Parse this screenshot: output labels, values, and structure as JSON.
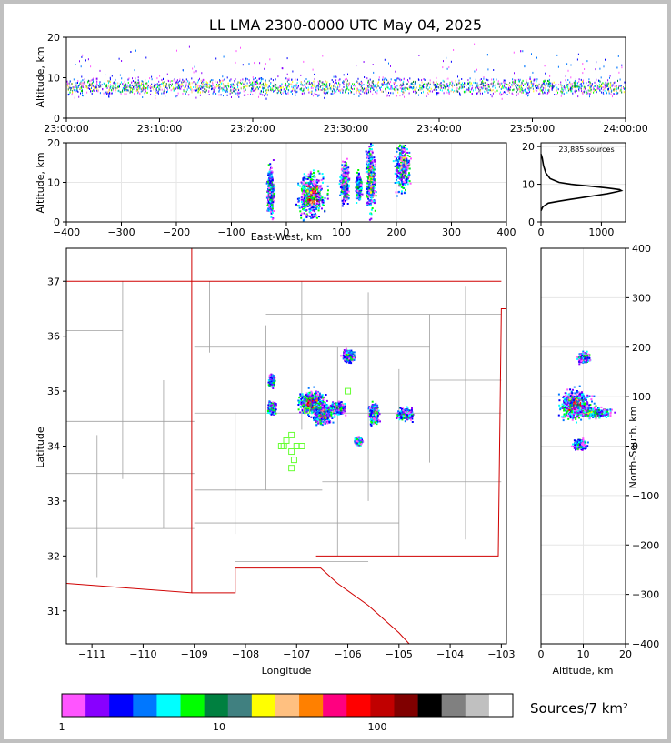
{
  "chart_data": [
    {
      "type": "scatter",
      "panel": "altitude-vs-time",
      "title": "LL LMA 2300-0000 UTC May 04, 2025",
      "ylabel": "Altitude, km",
      "x_ticks": [
        "23:00:00",
        "23:10:00",
        "23:20:00",
        "23:30:00",
        "23:40:00",
        "23:50:00",
        "24:00:00"
      ],
      "xlim": [
        "23:00:00",
        "24:00:00"
      ],
      "y_ticks": [
        "0",
        "10",
        "20"
      ],
      "ylim": [
        0,
        20
      ],
      "band": [
        {
          "altitude_km": 8,
          "spread_km": 4
        }
      ]
    },
    {
      "type": "heatmap",
      "panel": "altitude-vs-east-west",
      "xlabel": "East-West, km",
      "ylabel": "Altitude, km",
      "x_ticks": [
        "−400",
        "−300",
        "−200",
        "−100",
        "0",
        "100",
        "200",
        "300",
        "400"
      ],
      "xlim": [
        -400,
        400
      ],
      "y_ticks": [
        "0",
        "10",
        "20"
      ],
      "ylim": [
        0,
        20
      ],
      "clusters": [
        {
          "x": -30,
          "alt": 8,
          "w": 10,
          "h": 9,
          "intensity": 0.45
        },
        {
          "x": 45,
          "alt": 7,
          "w": 34,
          "h": 8,
          "intensity": 1.0
        },
        {
          "x": 105,
          "alt": 10,
          "w": 12,
          "h": 7,
          "intensity": 0.5
        },
        {
          "x": 130,
          "alt": 9,
          "w": 8,
          "h": 5,
          "intensity": 0.3
        },
        {
          "x": 152,
          "alt": 11,
          "w": 12,
          "h": 12,
          "intensity": 0.7
        },
        {
          "x": 210,
          "alt": 14,
          "w": 20,
          "h": 9,
          "intensity": 0.6
        }
      ]
    },
    {
      "type": "line",
      "panel": "altitude-histogram",
      "annotation": "23,885 sources",
      "x_ticks": [
        "0",
        "1000"
      ],
      "xlim": [
        0,
        1400
      ],
      "y_ticks": [
        "0",
        "10",
        "20"
      ],
      "ylim": [
        0,
        21
      ],
      "x": [
        0,
        30,
        120,
        300,
        500,
        700,
        900,
        1100,
        1250,
        1330,
        1300,
        1100,
        800,
        500,
        300,
        150,
        80,
        40,
        20,
        0
      ],
      "y": [
        3,
        4,
        5,
        5.5,
        6,
        6.5,
        7,
        7.5,
        8,
        8.3,
        8.6,
        9,
        9.5,
        10,
        10.5,
        11.5,
        13,
        15,
        17,
        18
      ]
    },
    {
      "type": "heatmap",
      "panel": "plan-view",
      "xlabel": "Longitude",
      "ylabel": "Latitude",
      "x_ticks": [
        "−111",
        "−110",
        "−109",
        "−108",
        "−107",
        "−106",
        "−105",
        "−104",
        "−103"
      ],
      "xlim": [
        -111.5,
        -102.9
      ],
      "y_ticks": [
        "31",
        "32",
        "33",
        "34",
        "35",
        "36",
        "37"
      ],
      "ylim": [
        30.4,
        37.6
      ],
      "clusters": [
        {
          "lon": -106.7,
          "lat": 34.8,
          "w": 0.35,
          "h": 0.3,
          "intensity": 1.0
        },
        {
          "lon": -106.5,
          "lat": 34.6,
          "w": 0.25,
          "h": 0.25,
          "intensity": 0.8
        },
        {
          "lon": -106.2,
          "lat": 34.7,
          "w": 0.2,
          "h": 0.15,
          "intensity": 0.5
        },
        {
          "lon": -106.0,
          "lat": 35.65,
          "w": 0.15,
          "h": 0.15,
          "intensity": 0.5
        },
        {
          "lon": -107.5,
          "lat": 34.7,
          "w": 0.1,
          "h": 0.15,
          "intensity": 0.4
        },
        {
          "lon": -107.5,
          "lat": 35.2,
          "w": 0.08,
          "h": 0.15,
          "intensity": 0.3
        },
        {
          "lon": -105.5,
          "lat": 34.6,
          "w": 0.12,
          "h": 0.25,
          "intensity": 0.6
        },
        {
          "lon": -104.9,
          "lat": 34.6,
          "w": 0.2,
          "h": 0.15,
          "intensity": 0.5
        },
        {
          "lon": -105.8,
          "lat": 34.1,
          "w": 0.1,
          "h": 0.1,
          "intensity": 0.3
        }
      ],
      "stations": [
        {
          "lon": -107.3,
          "lat": 34.0
        },
        {
          "lon": -107.2,
          "lat": 34.1
        },
        {
          "lon": -107.1,
          "lat": 34.2
        },
        {
          "lon": -107.0,
          "lat": 34.0
        },
        {
          "lon": -106.9,
          "lat": 34.0
        },
        {
          "lon": -107.1,
          "lat": 33.9
        },
        {
          "lon": -107.05,
          "lat": 33.75
        },
        {
          "lon": -107.1,
          "lat": 33.6
        },
        {
          "lon": -106.8,
          "lat": 34.65
        },
        {
          "lon": -106.0,
          "lat": 35.0
        },
        {
          "lon": -107.25,
          "lat": 34.0
        }
      ]
    },
    {
      "type": "heatmap",
      "panel": "north-south-vs-altitude",
      "xlabel": "Altitude, km",
      "ylabel": "North-South, km",
      "x_ticks": [
        "0",
        "10",
        "20"
      ],
      "xlim": [
        0,
        20
      ],
      "y_ticks": [
        "−400",
        "−300",
        "−200",
        "−100",
        "0",
        "100",
        "200",
        "300",
        "400"
      ],
      "ylim": [
        -400,
        400
      ],
      "clusters": [
        {
          "alt": 8,
          "ns": 85,
          "w": 5,
          "h": 40,
          "intensity": 1.0
        },
        {
          "alt": 12,
          "ns": 70,
          "w": 6,
          "h": 15,
          "intensity": 0.5
        },
        {
          "alt": 10,
          "ns": 180,
          "w": 2,
          "h": 15,
          "intensity": 0.4
        },
        {
          "alt": 9,
          "ns": 5,
          "w": 2,
          "h": 15,
          "intensity": 0.3
        }
      ]
    }
  ],
  "colorbar": {
    "label": "Sources/7 km²",
    "tick_labels": [
      "1",
      "10",
      "100"
    ],
    "colors": [
      "#ff55ff",
      "#8800ff",
      "#0000ff",
      "#0077ff",
      "#00ffff",
      "#00ff00",
      "#008040",
      "#408080",
      "#ffff00",
      "#ffc080",
      "#ff8000",
      "#ff0080",
      "#ff0000",
      "#c00000",
      "#800000",
      "#000000",
      "#808080",
      "#c0c0c0",
      "#ffffff"
    ]
  },
  "colors": {
    "state_border": "#d00000",
    "county_lines": "#a0a0a0",
    "station_marker": "#66ff33"
  }
}
